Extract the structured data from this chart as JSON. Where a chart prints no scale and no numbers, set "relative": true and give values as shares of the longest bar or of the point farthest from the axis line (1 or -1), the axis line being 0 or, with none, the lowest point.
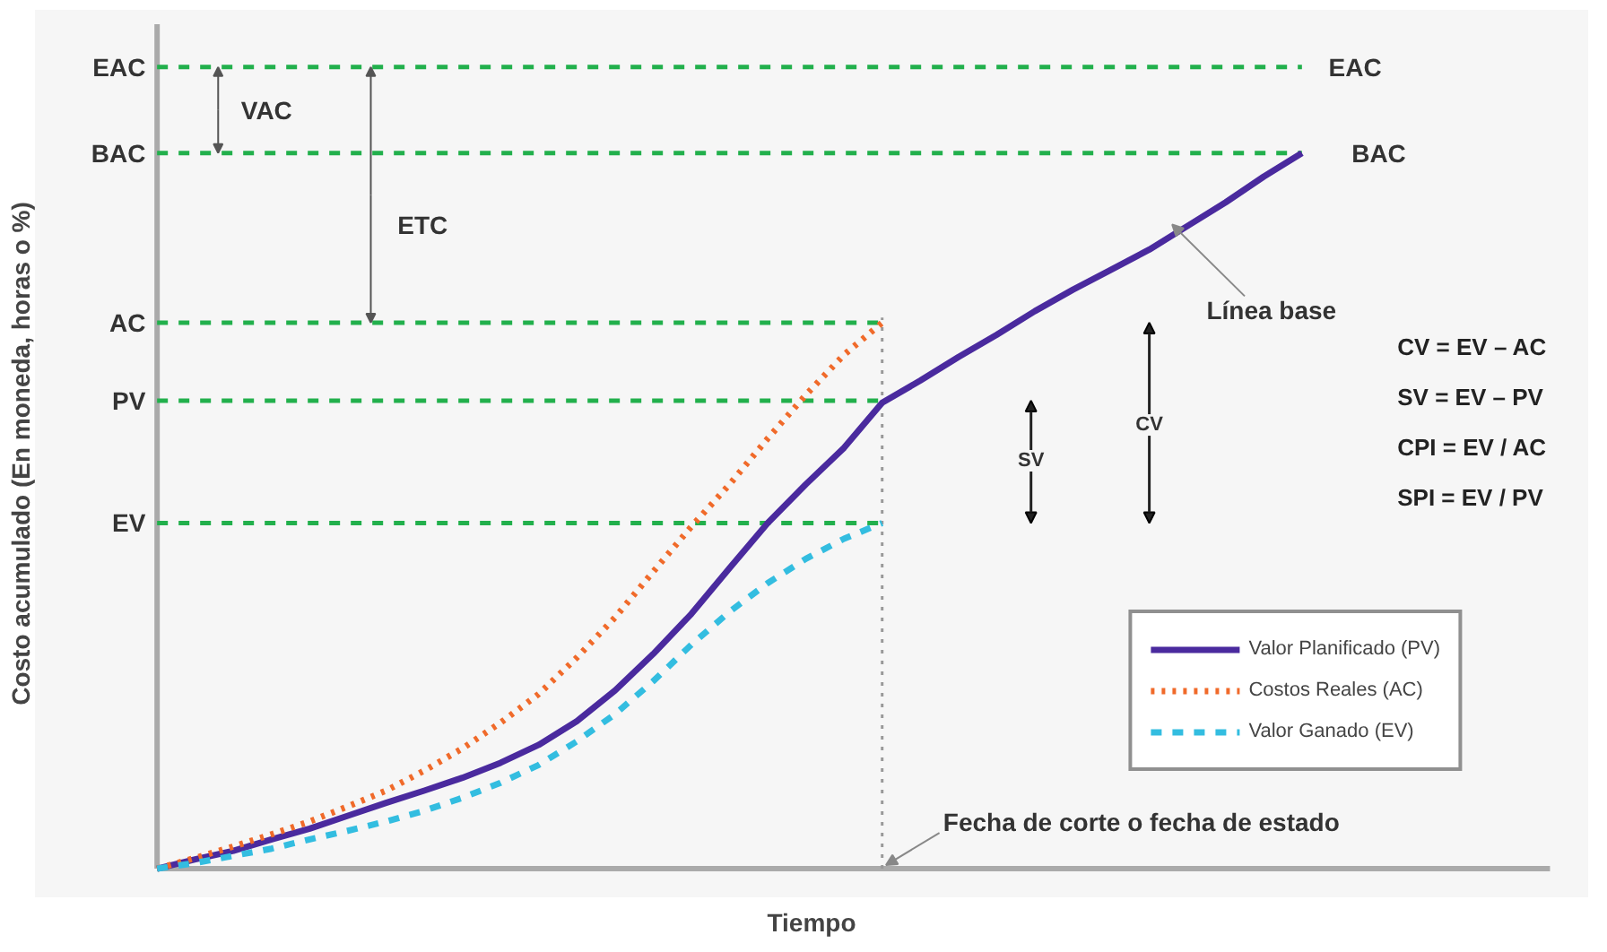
{
  "chart_data": {
    "type": "line",
    "relative": true,
    "xlabel": "Tiempo",
    "ylabel": "Costo acumulado (En moneda, horas o %)",
    "categories": [
      null,
      null,
      null,
      null,
      null,
      null,
      null,
      null,
      null,
      null,
      null,
      null,
      null,
      null,
      null,
      null,
      null,
      null,
      null,
      null,
      null,
      null,
      null,
      null,
      null,
      null,
      null,
      null,
      null,
      null,
      null
    ],
    "series": [
      {
        "name": "Valor Planificado (PV)",
        "color": "#4a2a9e",
        "line_style": "solid",
        "values": [
          0,
          0.013,
          0.025,
          0.041,
          0.056,
          0.074,
          0.092,
          0.109,
          0.127,
          0.148,
          0.173,
          0.206,
          0.249,
          0.3,
          0.356,
          0.42,
          0.483,
          0.537,
          0.588,
          0.651,
          0.682,
          0.715,
          0.746,
          0.779,
          0.809,
          0.837,
          0.865,
          0.898,
          0.931,
          0.967,
          1
        ]
      },
      {
        "name": "Costos Reales (AC)",
        "color": "#f06a2a",
        "line_style": "dotted",
        "values": [
          0,
          0.015,
          0.031,
          0.048,
          0.066,
          0.087,
          0.109,
          0.137,
          0.168,
          0.204,
          0.244,
          0.295,
          0.351,
          0.415,
          0.478,
          0.537,
          0.601,
          0.662,
          0.718,
          0.763,
          null,
          null,
          null,
          null,
          null,
          null,
          null,
          null,
          null,
          null,
          null
        ]
      },
      {
        "name": "Valor Ganado (EV)",
        "color": "#33bde0",
        "line_style": "dashed",
        "values": [
          0,
          0.008,
          0.018,
          0.028,
          0.041,
          0.053,
          0.066,
          0.081,
          0.099,
          0.12,
          0.145,
          0.178,
          0.216,
          0.262,
          0.313,
          0.359,
          0.399,
          0.433,
          0.461,
          0.483,
          null,
          null,
          null,
          null,
          null,
          null,
          null,
          null,
          null,
          null,
          null
        ]
      }
    ],
    "ref_lines": [
      {
        "axis": "y",
        "value": 1.12,
        "label": "EAC",
        "color": "#22b04c",
        "line_style": "dashed"
      },
      {
        "axis": "y",
        "value": 1.0,
        "label": "BAC",
        "color": "#22b04c",
        "line_style": "dashed"
      },
      {
        "axis": "y",
        "value": 0.763,
        "label": "AC",
        "color": "#22b04c",
        "line_style": "dashed"
      },
      {
        "axis": "y",
        "value": 0.654,
        "label": "PV",
        "color": "#22b04c",
        "line_style": "dashed"
      },
      {
        "axis": "y",
        "value": 0.483,
        "label": "EV",
        "color": "#22b04c",
        "line_style": "dashed"
      }
    ],
    "annotations": [
      "VAC",
      "ETC",
      "CV",
      "SV",
      "Línea base",
      "CV = EV – AC",
      "SV = EV – PV",
      "CPI = EV / AC",
      "SPI = EV / PV",
      "Fecha de corte o fecha de estado"
    ],
    "legend": "bottom right",
    "grid": false
  }
}
